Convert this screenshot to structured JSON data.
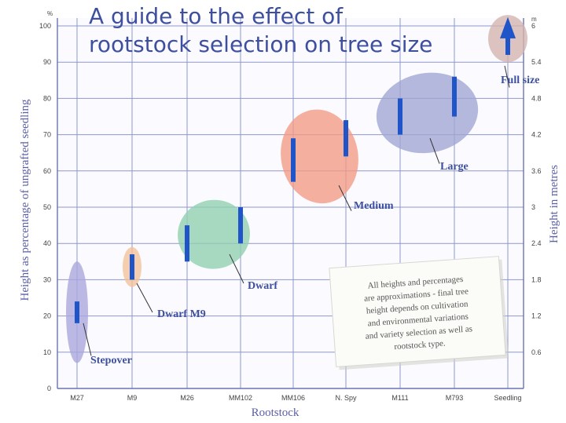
{
  "chart_data": {
    "type": "range",
    "title_lines": [
      "A guide to the effect of",
      "rootstock selection on tree size"
    ],
    "xlabel": "Rootstock",
    "ylabel": "Height as percentage of ungrafted seedling",
    "y2label": "Height in metres",
    "y_unit": "%",
    "y2_unit": "m",
    "ylim": [
      0,
      100
    ],
    "y_ticks": [
      "0",
      "10",
      "20",
      "30",
      "40",
      "50",
      "60",
      "70",
      "80",
      "90",
      "100"
    ],
    "y2_ticks": [
      "0.6",
      "1.2",
      "1.8",
      "2.4",
      "3",
      "3.6",
      "4.2",
      "4.8",
      "5.4",
      "6"
    ],
    "categories": [
      "M27",
      "M9",
      "M26",
      "MM102",
      "MM106",
      "N. Spy",
      "M111",
      "M793",
      "Seedling"
    ],
    "ranges": [
      {
        "category": "M27",
        "low": 18,
        "high": 24
      },
      {
        "category": "M9",
        "low": 30,
        "high": 37
      },
      {
        "category": "M26",
        "low": 35,
        "high": 45
      },
      {
        "category": "MM102",
        "low": 40,
        "high": 50
      },
      {
        "category": "MM106",
        "low": 57,
        "high": 69
      },
      {
        "category": "N. Spy",
        "low": 64,
        "high": 74
      },
      {
        "category": "M111",
        "low": 70,
        "high": 80
      },
      {
        "category": "M793",
        "low": 75,
        "high": 86
      }
    ],
    "groups": [
      {
        "label": "Stepover",
        "color": "#a9a6dd"
      },
      {
        "label": "Dwarf M9",
        "color": "#f2c197"
      },
      {
        "label": "Dwarf",
        "color": "#8fcfb0"
      },
      {
        "label": "Medium",
        "color": "#f29a84"
      },
      {
        "label": "Large",
        "color": "#9fa5d2"
      },
      {
        "label": "Full size",
        "color": "#d3b4ae"
      }
    ],
    "note_lines": [
      "All heights and percentages",
      "are approximations - final tree",
      "height depends on cultivation",
      "and environmental variations",
      "and variety selection as well as",
      "rootstock type."
    ],
    "bar_color": "#1f55c8",
    "grid": true
  }
}
